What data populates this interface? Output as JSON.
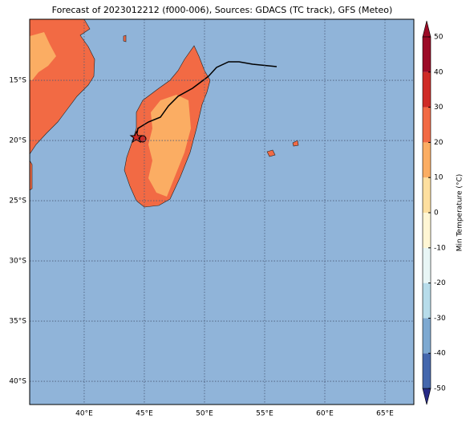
{
  "title": "Forecast of 2023012212 (f000-006), Sources: GDACS (TC track), GFS (Meteo)",
  "map": {
    "xlim": [
      35.47,
      67.4
    ],
    "ylim": [
      -41.93,
      -9.93
    ],
    "xticks": [
      {
        "value": 40,
        "label": "40°E"
      },
      {
        "value": 45,
        "label": "45°E"
      },
      {
        "value": 50,
        "label": "50°E"
      },
      {
        "value": 55,
        "label": "55°E"
      },
      {
        "value": 60,
        "label": "60°E"
      },
      {
        "value": 65,
        "label": "65°E"
      }
    ],
    "yticks": [
      {
        "value": -15,
        "label": "15°S"
      },
      {
        "value": -20,
        "label": "20°S"
      },
      {
        "value": -25,
        "label": "25°S"
      },
      {
        "value": -30,
        "label": "30°S"
      },
      {
        "value": -35,
        "label": "35°S"
      },
      {
        "value": -40,
        "label": "40°S"
      }
    ],
    "grid": true
  },
  "colorbar": {
    "label": "Min Temperature (°C)",
    "lim": [
      -50,
      50
    ],
    "ticks": [
      -50,
      -40,
      -30,
      -20,
      -10,
      0,
      10,
      20,
      30,
      40,
      50
    ],
    "colors": [
      "#262a86",
      "#4467ad",
      "#7ea9d1",
      "#b7dcea",
      "#e8f6f6",
      "#fff6d4",
      "#fedf9f",
      "#fbad63",
      "#f26a44",
      "#cf2b26",
      "#9c0b26"
    ]
  }
}
